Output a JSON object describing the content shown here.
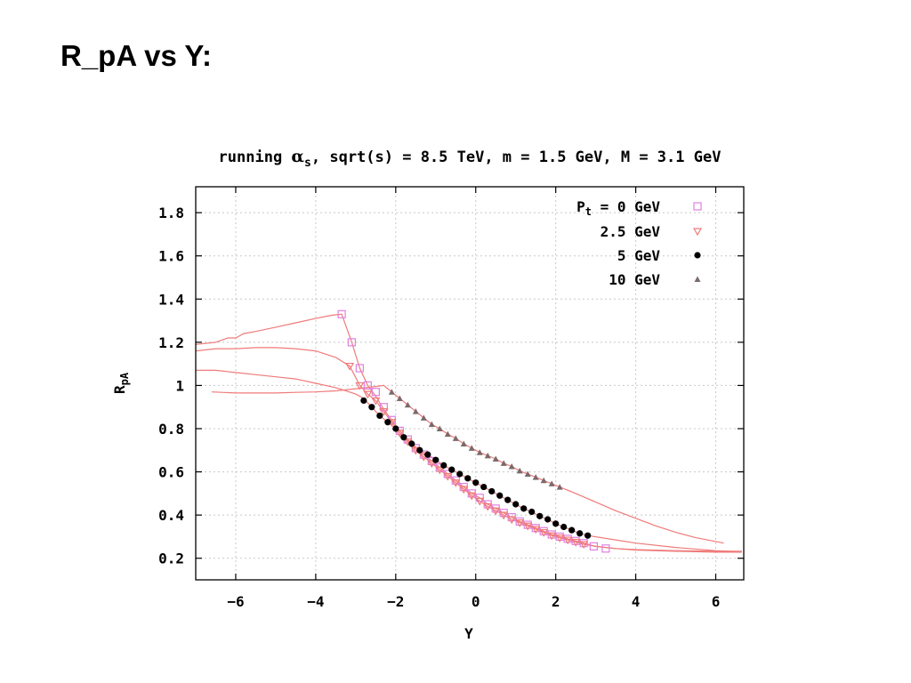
{
  "page": {
    "title": "R_pA vs Y:"
  },
  "chart_data": {
    "type": "scatter",
    "title_parts": {
      "pre": "running ",
      "alpha": "α",
      "alpha_sub": "s",
      "post": ", sqrt(s) = 8.5 TeV, m = 1.5 GeV, M = 3.1 GeV"
    },
    "xlabel": "Y",
    "ylabel": {
      "main": "R",
      "sub": "pA"
    },
    "xlim": [
      -7,
      6.7
    ],
    "ylim": [
      0.1,
      1.92
    ],
    "xticks": [
      -6,
      -4,
      -2,
      0,
      2,
      4,
      6
    ],
    "yticks": [
      0.2,
      0.4,
      0.6,
      0.8,
      1,
      1.2,
      1.4,
      1.6,
      1.8
    ],
    "ytick_labels": [
      "0.2",
      "0.4",
      "0.6",
      "0.8",
      "1",
      "1.2",
      "1.4",
      "1.6",
      "1.8"
    ],
    "grid": true,
    "legend_position": "top-right",
    "curve_color": "#f07a7a",
    "series": [
      {
        "name": "P_t = 0 GeV",
        "legend_label": {
          "pre": "P",
          "sub": "t",
          "post": " = 0 GeV"
        },
        "marker": "square",
        "color": "#e07fe0",
        "points": [
          [
            -3.35,
            1.33
          ],
          [
            -3.1,
            1.2
          ],
          [
            -2.9,
            1.08
          ],
          [
            -2.7,
            1.0
          ],
          [
            -2.5,
            0.97
          ],
          [
            -2.3,
            0.9
          ],
          [
            -2.1,
            0.84
          ],
          [
            -1.9,
            0.79
          ],
          [
            -1.7,
            0.75
          ],
          [
            -1.5,
            0.71
          ],
          [
            -1.3,
            0.68
          ],
          [
            -1.1,
            0.65
          ],
          [
            -0.9,
            0.62
          ],
          [
            -0.7,
            0.59
          ],
          [
            -0.5,
            0.56
          ],
          [
            -0.3,
            0.53
          ],
          [
            -0.1,
            0.5
          ],
          [
            0.1,
            0.48
          ],
          [
            0.3,
            0.45
          ],
          [
            0.5,
            0.43
          ],
          [
            0.7,
            0.41
          ],
          [
            0.9,
            0.39
          ],
          [
            1.1,
            0.37
          ],
          [
            1.3,
            0.355
          ],
          [
            1.5,
            0.34
          ],
          [
            1.7,
            0.325
          ],
          [
            1.9,
            0.31
          ],
          [
            2.1,
            0.3
          ],
          [
            2.3,
            0.29
          ],
          [
            2.5,
            0.28
          ],
          [
            2.7,
            0.27
          ],
          [
            2.95,
            0.255
          ],
          [
            3.25,
            0.245
          ]
        ],
        "curve": [
          [
            -7,
            1.19
          ],
          [
            -6.5,
            1.2
          ],
          [
            -6.2,
            1.22
          ],
          [
            -6,
            1.22
          ],
          [
            -5.8,
            1.24
          ],
          [
            -5.5,
            1.25
          ],
          [
            -5,
            1.27
          ],
          [
            -4.5,
            1.29
          ],
          [
            -4,
            1.31
          ],
          [
            -3.6,
            1.325
          ],
          [
            -3.35,
            1.33
          ],
          [
            -3.1,
            1.2
          ],
          [
            -2.9,
            1.08
          ],
          [
            -2.7,
            1.0
          ],
          [
            -2.5,
            0.95
          ],
          [
            -2.3,
            0.89
          ],
          [
            -2.1,
            0.84
          ],
          [
            -1.9,
            0.79
          ],
          [
            -1.7,
            0.75
          ],
          [
            -1.5,
            0.71
          ],
          [
            -1.3,
            0.68
          ],
          [
            -1.1,
            0.65
          ],
          [
            -0.9,
            0.62
          ],
          [
            -0.7,
            0.59
          ],
          [
            -0.5,
            0.56
          ],
          [
            -0.3,
            0.53
          ],
          [
            -0.1,
            0.5
          ],
          [
            0.1,
            0.48
          ],
          [
            0.3,
            0.45
          ],
          [
            0.5,
            0.43
          ],
          [
            0.7,
            0.41
          ],
          [
            0.9,
            0.39
          ],
          [
            1.1,
            0.37
          ],
          [
            1.3,
            0.355
          ],
          [
            1.5,
            0.34
          ],
          [
            1.7,
            0.325
          ],
          [
            1.9,
            0.31
          ],
          [
            2.1,
            0.3
          ],
          [
            2.3,
            0.29
          ],
          [
            2.5,
            0.28
          ],
          [
            2.7,
            0.27
          ],
          [
            3,
            0.255
          ],
          [
            3.5,
            0.245
          ],
          [
            4,
            0.24
          ],
          [
            5,
            0.235
          ],
          [
            6,
            0.232
          ],
          [
            6.65,
            0.232
          ]
        ]
      },
      {
        "name": "2.5 GeV",
        "legend_label": {
          "pre": "2.5 GeV",
          "sub": "",
          "post": ""
        },
        "marker": "triangle-down",
        "color": "#ef7a7a",
        "points": [
          [
            -3.15,
            1.09
          ],
          [
            -2.9,
            1.0
          ],
          [
            -2.7,
            0.96
          ],
          [
            -2.5,
            0.93
          ],
          [
            -2.3,
            0.88
          ],
          [
            -2.1,
            0.83
          ],
          [
            -1.9,
            0.78
          ],
          [
            -1.7,
            0.74
          ],
          [
            -1.5,
            0.7
          ],
          [
            -1.3,
            0.67
          ],
          [
            -1.1,
            0.64
          ],
          [
            -0.9,
            0.61
          ],
          [
            -0.7,
            0.58
          ],
          [
            -0.5,
            0.55
          ],
          [
            -0.3,
            0.52
          ],
          [
            -0.1,
            0.49
          ],
          [
            0.1,
            0.465
          ],
          [
            0.3,
            0.44
          ],
          [
            0.5,
            0.42
          ],
          [
            0.7,
            0.4
          ],
          [
            0.9,
            0.38
          ],
          [
            1.1,
            0.365
          ],
          [
            1.3,
            0.35
          ],
          [
            1.5,
            0.335
          ],
          [
            1.7,
            0.32
          ],
          [
            1.9,
            0.305
          ],
          [
            2.1,
            0.295
          ],
          [
            2.3,
            0.285
          ],
          [
            2.5,
            0.275
          ],
          [
            2.7,
            0.265
          ]
        ],
        "curve": [
          [
            -7,
            1.16
          ],
          [
            -6.5,
            1.17
          ],
          [
            -6,
            1.17
          ],
          [
            -5.5,
            1.175
          ],
          [
            -5,
            1.175
          ],
          [
            -4.5,
            1.17
          ],
          [
            -4,
            1.16
          ],
          [
            -3.5,
            1.13
          ],
          [
            -3.15,
            1.09
          ],
          [
            -2.9,
            1.0
          ],
          [
            -2.7,
            0.96
          ],
          [
            -2.5,
            0.93
          ],
          [
            -2.3,
            0.88
          ],
          [
            -2.1,
            0.83
          ],
          [
            -1.9,
            0.78
          ],
          [
            -1.7,
            0.74
          ],
          [
            -1.5,
            0.7
          ],
          [
            -1.3,
            0.67
          ],
          [
            -1.1,
            0.64
          ],
          [
            -0.9,
            0.61
          ],
          [
            -0.7,
            0.58
          ],
          [
            -0.5,
            0.55
          ],
          [
            -0.3,
            0.52
          ],
          [
            -0.1,
            0.49
          ],
          [
            0.1,
            0.465
          ],
          [
            0.3,
            0.44
          ],
          [
            0.5,
            0.42
          ],
          [
            0.7,
            0.4
          ],
          [
            0.9,
            0.38
          ],
          [
            1.1,
            0.365
          ],
          [
            1.3,
            0.35
          ],
          [
            1.5,
            0.335
          ],
          [
            1.7,
            0.32
          ],
          [
            1.9,
            0.305
          ],
          [
            2.1,
            0.295
          ],
          [
            2.3,
            0.285
          ],
          [
            2.5,
            0.275
          ],
          [
            2.7,
            0.265
          ],
          [
            3,
            0.255
          ],
          [
            3.5,
            0.245
          ],
          [
            4,
            0.238
          ],
          [
            5,
            0.232
          ],
          [
            6,
            0.228
          ],
          [
            6.65,
            0.228
          ]
        ]
      },
      {
        "name": "5 GeV",
        "legend_label": {
          "pre": "5 GeV",
          "sub": "",
          "post": ""
        },
        "marker": "circle",
        "color": "#000000",
        "points": [
          [
            -2.8,
            0.93
          ],
          [
            -2.6,
            0.9
          ],
          [
            -2.4,
            0.86
          ],
          [
            -2.2,
            0.83
          ],
          [
            -2.0,
            0.8
          ],
          [
            -1.8,
            0.76
          ],
          [
            -1.6,
            0.73
          ],
          [
            -1.4,
            0.7
          ],
          [
            -1.2,
            0.68
          ],
          [
            -1.0,
            0.655
          ],
          [
            -0.8,
            0.63
          ],
          [
            -0.6,
            0.61
          ],
          [
            -0.4,
            0.59
          ],
          [
            -0.2,
            0.57
          ],
          [
            0.0,
            0.55
          ],
          [
            0.2,
            0.53
          ],
          [
            0.4,
            0.51
          ],
          [
            0.6,
            0.49
          ],
          [
            0.8,
            0.47
          ],
          [
            1.0,
            0.45
          ],
          [
            1.2,
            0.43
          ],
          [
            1.4,
            0.415
          ],
          [
            1.6,
            0.395
          ],
          [
            1.8,
            0.38
          ],
          [
            2.0,
            0.36
          ],
          [
            2.2,
            0.345
          ],
          [
            2.4,
            0.33
          ],
          [
            2.6,
            0.315
          ],
          [
            2.8,
            0.305
          ]
        ],
        "curve": [
          [
            -7,
            1.07
          ],
          [
            -6.5,
            1.07
          ],
          [
            -6,
            1.06
          ],
          [
            -5.5,
            1.05
          ],
          [
            -5,
            1.04
          ],
          [
            -4.5,
            1.03
          ],
          [
            -4,
            1.01
          ],
          [
            -3.5,
            0.99
          ],
          [
            -3,
            0.96
          ],
          [
            -2.8,
            0.94
          ],
          [
            -2.6,
            0.9
          ],
          [
            -2.4,
            0.86
          ],
          [
            -2.2,
            0.83
          ],
          [
            -2.0,
            0.8
          ],
          [
            -1.8,
            0.76
          ],
          [
            -1.6,
            0.73
          ],
          [
            -1.4,
            0.7
          ],
          [
            -1.2,
            0.68
          ],
          [
            -1.0,
            0.655
          ],
          [
            -0.8,
            0.63
          ],
          [
            -0.6,
            0.61
          ],
          [
            -0.4,
            0.59
          ],
          [
            -0.2,
            0.57
          ],
          [
            0.0,
            0.55
          ],
          [
            0.2,
            0.53
          ],
          [
            0.4,
            0.51
          ],
          [
            0.6,
            0.49
          ],
          [
            0.8,
            0.47
          ],
          [
            1.0,
            0.45
          ],
          [
            1.2,
            0.43
          ],
          [
            1.4,
            0.415
          ],
          [
            1.6,
            0.395
          ],
          [
            1.8,
            0.38
          ],
          [
            2.0,
            0.36
          ],
          [
            2.2,
            0.345
          ],
          [
            2.4,
            0.33
          ],
          [
            2.6,
            0.315
          ],
          [
            2.8,
            0.305
          ],
          [
            3.5,
            0.285
          ],
          [
            4,
            0.27
          ],
          [
            5,
            0.25
          ],
          [
            6,
            0.235
          ],
          [
            6.65,
            0.23
          ]
        ]
      },
      {
        "name": "10 GeV",
        "legend_label": {
          "pre": "10 GeV",
          "sub": "",
          "post": ""
        },
        "marker": "triangle-up",
        "color": "#7a6a6a",
        "points": [
          [
            -2.1,
            0.97
          ],
          [
            -1.9,
            0.94
          ],
          [
            -1.7,
            0.91
          ],
          [
            -1.5,
            0.88
          ],
          [
            -1.3,
            0.85
          ],
          [
            -1.1,
            0.82
          ],
          [
            -0.9,
            0.8
          ],
          [
            -0.7,
            0.775
          ],
          [
            -0.5,
            0.755
          ],
          [
            -0.3,
            0.73
          ],
          [
            -0.1,
            0.71
          ],
          [
            0.1,
            0.69
          ],
          [
            0.3,
            0.675
          ],
          [
            0.5,
            0.66
          ],
          [
            0.7,
            0.64
          ],
          [
            0.9,
            0.625
          ],
          [
            1.1,
            0.605
          ],
          [
            1.3,
            0.59
          ],
          [
            1.5,
            0.575
          ],
          [
            1.7,
            0.56
          ],
          [
            1.9,
            0.545
          ],
          [
            2.1,
            0.53
          ]
        ],
        "curve": [
          [
            -6.6,
            0.97
          ],
          [
            -6,
            0.965
          ],
          [
            -5.5,
            0.965
          ],
          [
            -5,
            0.965
          ],
          [
            -4.5,
            0.968
          ],
          [
            -4,
            0.97
          ],
          [
            -3.5,
            0.975
          ],
          [
            -3,
            0.985
          ],
          [
            -2.5,
            0.995
          ],
          [
            -2.3,
            1.0
          ],
          [
            -2.1,
            0.97
          ],
          [
            -1.9,
            0.94
          ],
          [
            -1.7,
            0.91
          ],
          [
            -1.5,
            0.88
          ],
          [
            -1.3,
            0.85
          ],
          [
            -1.1,
            0.82
          ],
          [
            -0.9,
            0.8
          ],
          [
            -0.7,
            0.775
          ],
          [
            -0.5,
            0.755
          ],
          [
            -0.3,
            0.73
          ],
          [
            -0.1,
            0.71
          ],
          [
            0.1,
            0.69
          ],
          [
            0.3,
            0.675
          ],
          [
            0.5,
            0.66
          ],
          [
            0.7,
            0.64
          ],
          [
            0.9,
            0.625
          ],
          [
            1.1,
            0.605
          ],
          [
            1.3,
            0.59
          ],
          [
            1.5,
            0.575
          ],
          [
            1.7,
            0.56
          ],
          [
            1.9,
            0.545
          ],
          [
            2.1,
            0.53
          ],
          [
            2.5,
            0.5
          ],
          [
            3,
            0.46
          ],
          [
            3.5,
            0.42
          ],
          [
            4,
            0.385
          ],
          [
            4.5,
            0.35
          ],
          [
            5,
            0.32
          ],
          [
            5.5,
            0.295
          ],
          [
            6.2,
            0.27
          ]
        ]
      }
    ]
  }
}
